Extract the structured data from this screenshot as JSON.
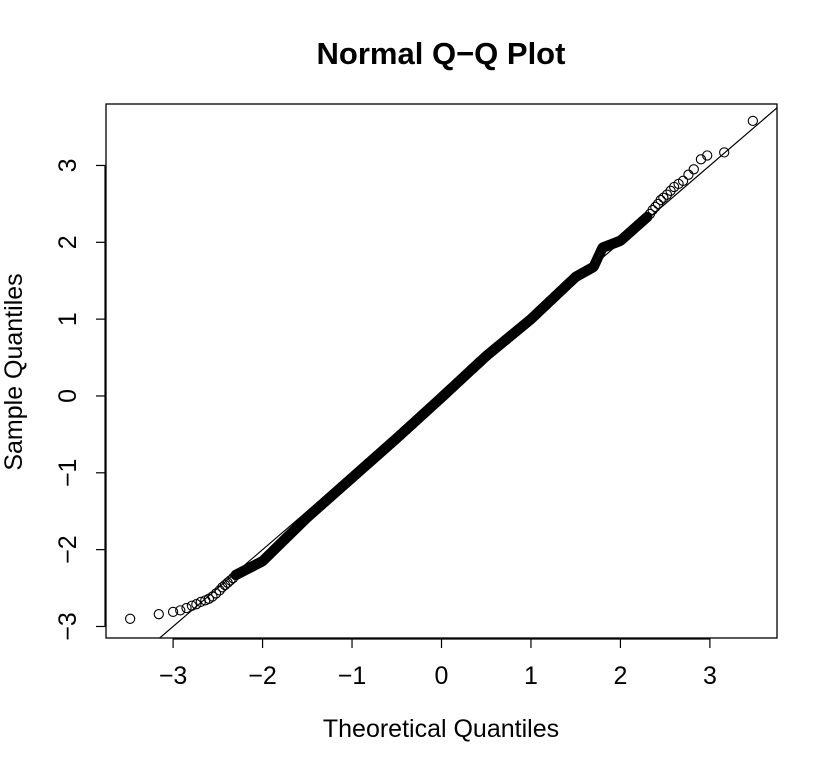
{
  "chart_data": {
    "type": "scatter",
    "title": "Normal Q−Q Plot",
    "xlabel": "Theoretical Quantiles",
    "ylabel": "Sample Quantiles",
    "xlim": [
      -3.75,
      3.75
    ],
    "ylim": [
      -3.15,
      3.8
    ],
    "x_ticks": [
      -3,
      -2,
      -1,
      0,
      1,
      2,
      3
    ],
    "x_tick_labels": [
      "−3",
      "−2",
      "−1",
      "0",
      "1",
      "2",
      "3"
    ],
    "y_ticks": [
      -3,
      -2,
      -1,
      0,
      1,
      2,
      3
    ],
    "y_tick_labels": [
      "−3",
      "−2",
      "−1",
      "0",
      "1",
      "2",
      "3"
    ],
    "grid": false,
    "marker": "open-circle",
    "reference_line": {
      "intercept": 0,
      "slope": 1
    },
    "series": [
      {
        "points": [
          [
            -3.48,
            -2.9
          ],
          [
            -3.16,
            -2.84
          ],
          [
            -3.0,
            -2.81
          ],
          [
            -2.92,
            -2.79
          ],
          [
            -2.85,
            -2.76
          ],
          [
            -2.79,
            -2.73
          ],
          [
            -2.74,
            -2.71
          ],
          [
            -2.69,
            -2.68
          ],
          [
            -2.64,
            -2.66
          ],
          [
            -2.6,
            -2.64
          ],
          [
            -2.56,
            -2.61
          ],
          [
            -2.52,
            -2.57
          ],
          [
            -2.48,
            -2.53
          ],
          [
            -2.45,
            -2.49
          ],
          [
            -2.42,
            -2.46
          ],
          [
            -2.39,
            -2.43
          ],
          [
            -2.36,
            -2.4
          ],
          [
            -2.33,
            -2.37
          ],
          [
            -2.3,
            -2.33
          ],
          [
            2.3,
            2.33
          ],
          [
            2.33,
            2.37
          ],
          [
            2.36,
            2.42
          ],
          [
            2.39,
            2.46
          ],
          [
            2.42,
            2.5
          ],
          [
            2.45,
            2.55
          ],
          [
            2.48,
            2.58
          ],
          [
            2.52,
            2.62
          ],
          [
            2.56,
            2.67
          ],
          [
            2.6,
            2.72
          ],
          [
            2.65,
            2.76
          ],
          [
            2.7,
            2.8
          ],
          [
            2.76,
            2.88
          ],
          [
            2.82,
            2.95
          ],
          [
            2.9,
            3.08
          ],
          [
            2.97,
            3.13
          ],
          [
            3.16,
            3.17
          ],
          [
            3.48,
            3.58
          ]
        ],
        "dense_segments": [
          {
            "x_from": -2.3,
            "x_to": 2.3,
            "sample_offset": [
              [
                -2.3,
                -0.03
              ],
              [
                -2.0,
                -0.15
              ],
              [
                -1.5,
                -0.08
              ],
              [
                -0.5,
                -0.05
              ],
              [
                0,
                -0.02
              ],
              [
                0.5,
                0.02
              ],
              [
                1.0,
                0.0
              ],
              [
                1.5,
                0.05
              ],
              [
                1.7,
                -0.02
              ],
              [
                1.8,
                0.13
              ],
              [
                2.0,
                0.02
              ],
              [
                2.3,
                0.03
              ]
            ]
          }
        ]
      }
    ]
  }
}
